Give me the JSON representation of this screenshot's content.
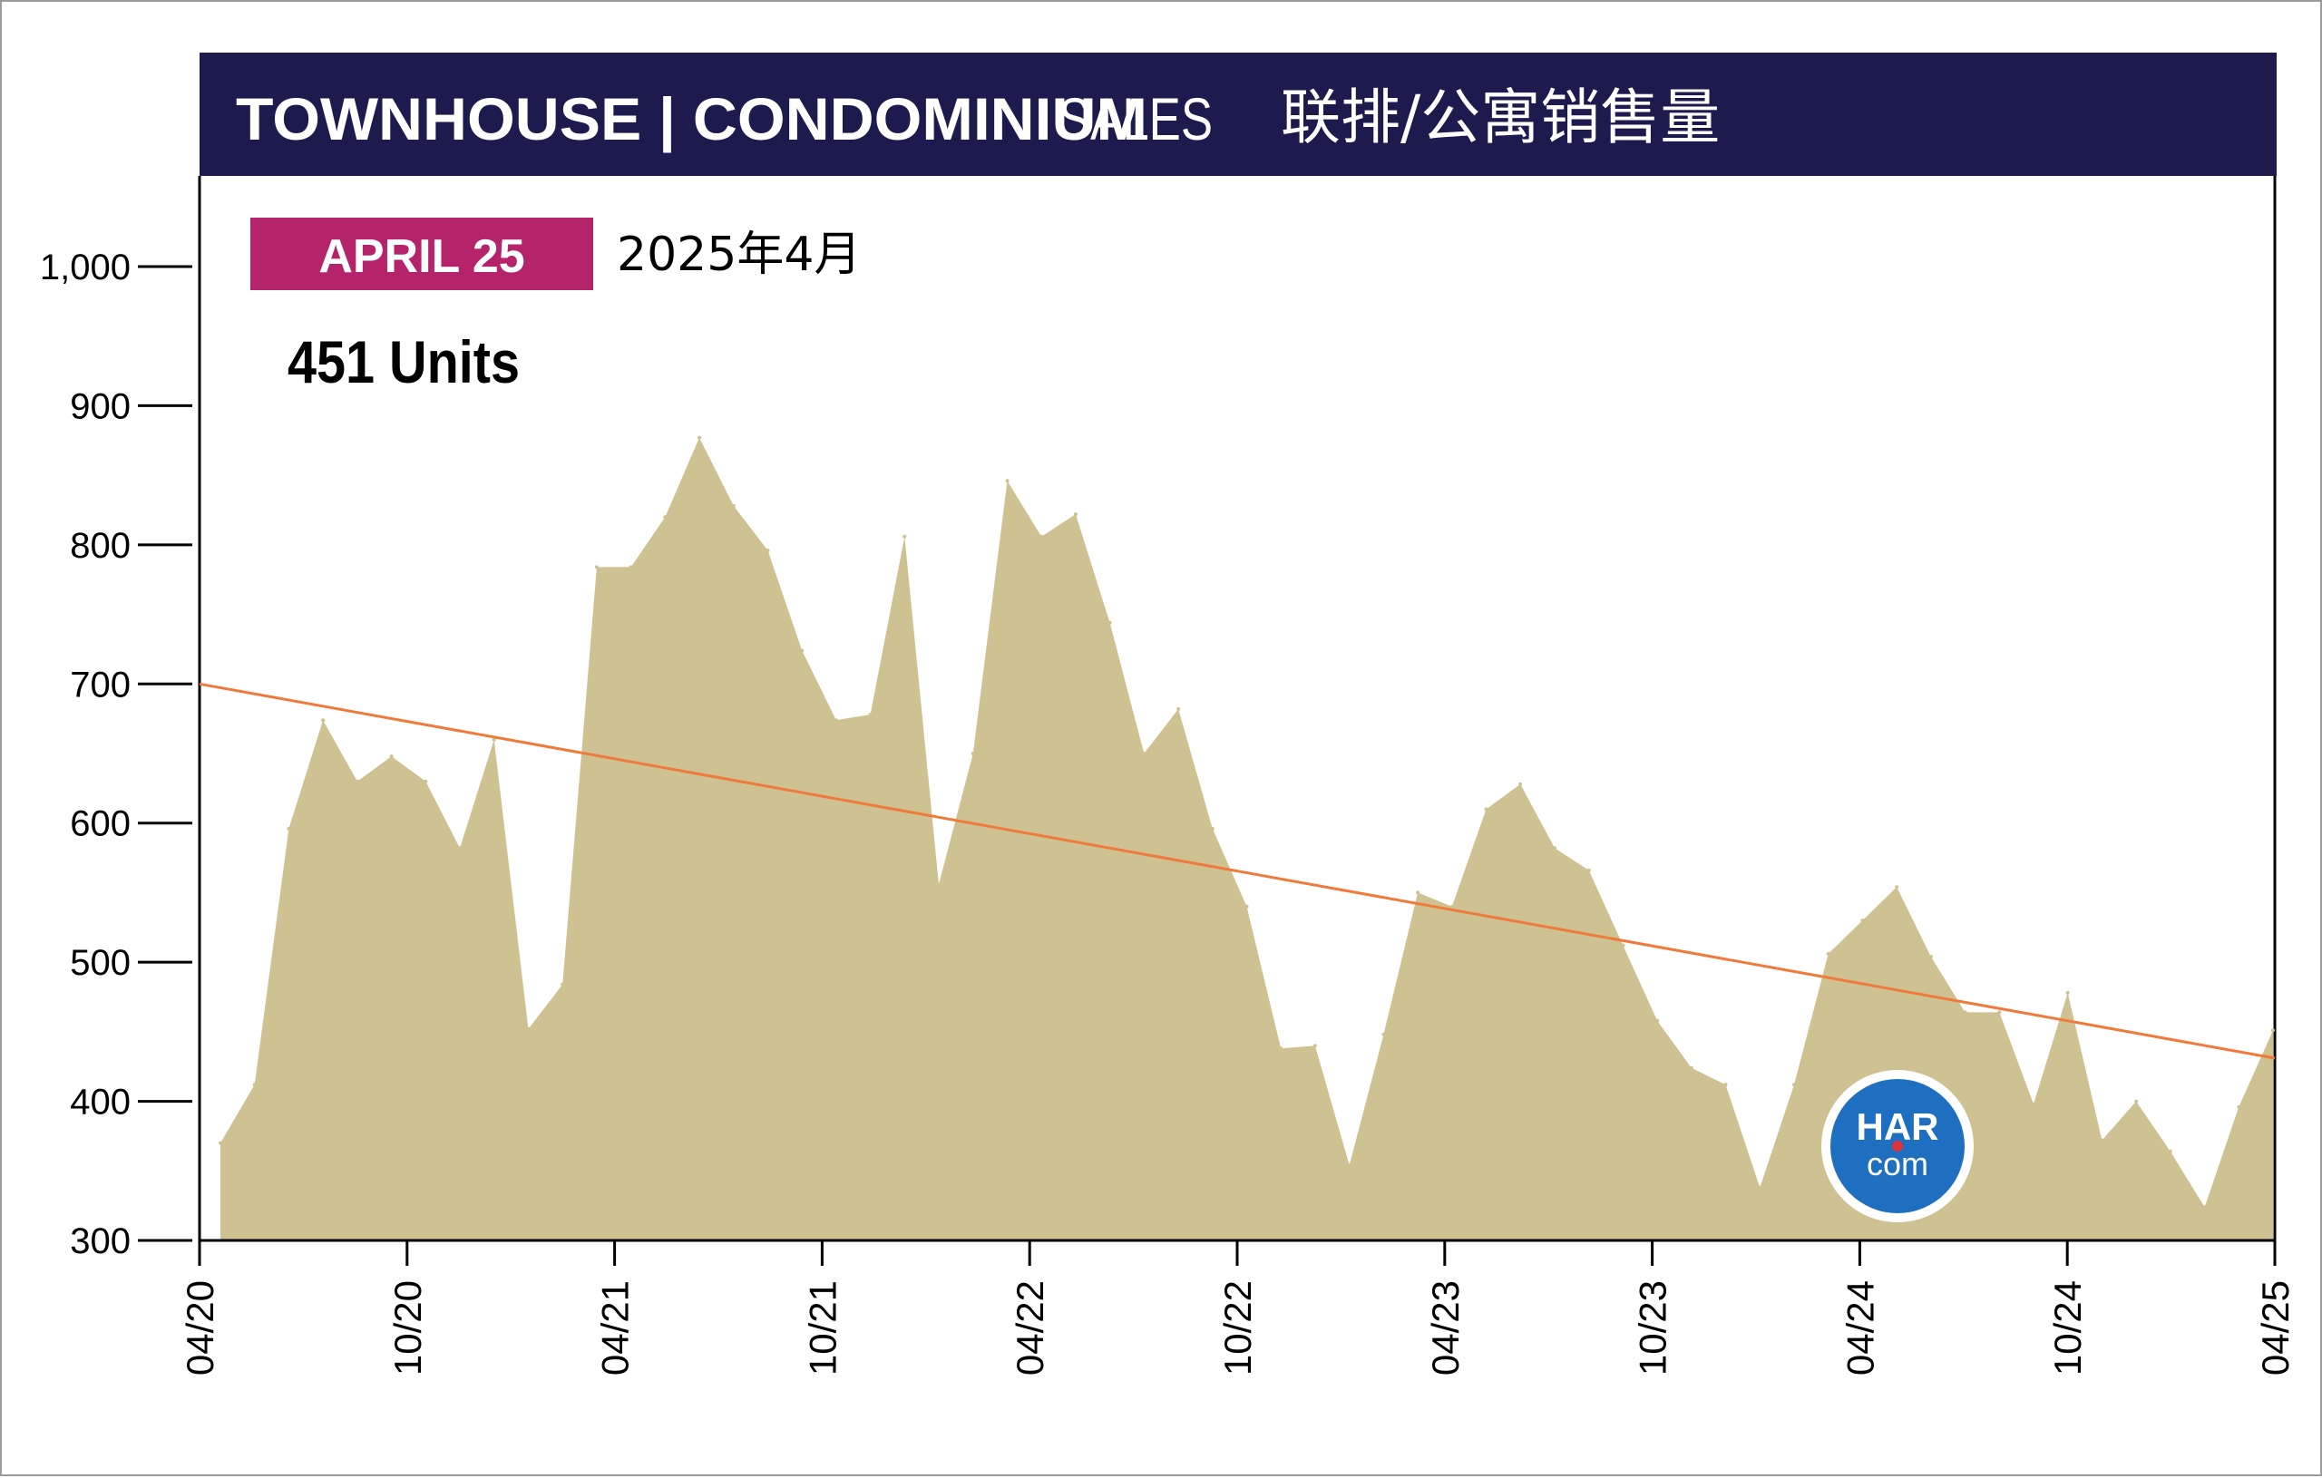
{
  "header": {
    "title_bold": "TOWNHOUSE | CONDOMINIUM",
    "title_light": "SALES",
    "title_cn": "联排/公寓销售量"
  },
  "badge": {
    "label": "APRIL 25",
    "date_cn": "2025年4月"
  },
  "summary": {
    "units": "451 Units"
  },
  "logo": {
    "text_top": "HAR",
    "text_bottom": "com"
  },
  "colors": {
    "header_bg": "#1d1a4e",
    "badge_bg": "#b5236a",
    "area_fill": "#cec292",
    "trend_line": "#f07a3a",
    "logo_blue": "#1f6fc0",
    "logo_dot": "#e0303a"
  },
  "chart_data": {
    "type": "area",
    "title": "TOWNHOUSE | CONDOMINIUM SALES 联排/公寓销售量",
    "xlabel": "",
    "ylabel": "",
    "ylim": [
      300,
      1060
    ],
    "y_ticks": [
      300,
      400,
      500,
      600,
      700,
      800,
      900,
      1000
    ],
    "y_tick_labels": [
      "300",
      "400",
      "500",
      "600",
      "700",
      "800",
      "900",
      "1,000"
    ],
    "x_ticks": [
      "04/20",
      "10/20",
      "04/21",
      "10/21",
      "04/22",
      "10/22",
      "04/23",
      "10/23",
      "04/24",
      "10/24",
      "04/25"
    ],
    "grid": false,
    "series": [
      {
        "values": [
          370,
          412,
          596,
          674,
          630,
          648,
          630,
          582,
          660,
          452,
          484,
          784,
          784,
          820,
          877,
          828,
          796,
          724,
          674,
          678,
          806,
          556,
          650,
          846,
          806,
          822,
          744,
          650,
          682,
          596,
          540,
          438,
          440,
          354,
          448,
          550,
          540,
          610,
          628,
          582,
          566,
          512,
          458,
          424,
          412,
          338,
          412,
          506,
          530,
          554,
          504,
          464,
          464,
          398,
          478,
          372,
          400,
          364,
          324,
          396,
          451
        ]
      }
    ],
    "trend": {
      "start": 700,
      "end": 431
    }
  }
}
